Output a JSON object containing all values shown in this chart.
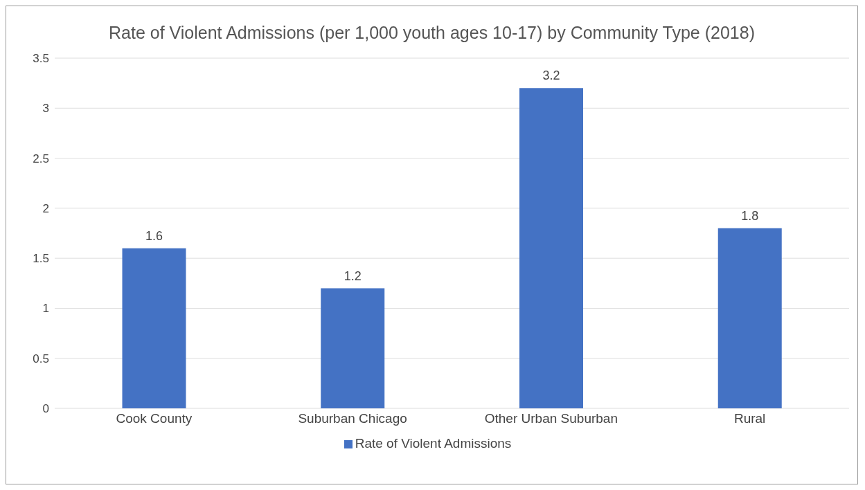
{
  "chart_data": {
    "type": "bar",
    "title": "Rate of Violent Admissions (per 1,000 youth ages 10-17) by Community Type (2018)",
    "categories": [
      "Cook County",
      "Suburban Chicago",
      "Other Urban Suburban",
      "Rural"
    ],
    "series": [
      {
        "name": "Rate of Violent Admissions",
        "color": "#4472c4",
        "values": [
          1.6,
          1.2,
          3.2,
          1.8
        ]
      }
    ],
    "ylim": [
      0,
      3.5
    ],
    "yticks": [
      0,
      0.5,
      1,
      1.5,
      2,
      2.5,
      3,
      3.5
    ],
    "grid": "y",
    "legend": "bottom",
    "data_labels": true
  }
}
